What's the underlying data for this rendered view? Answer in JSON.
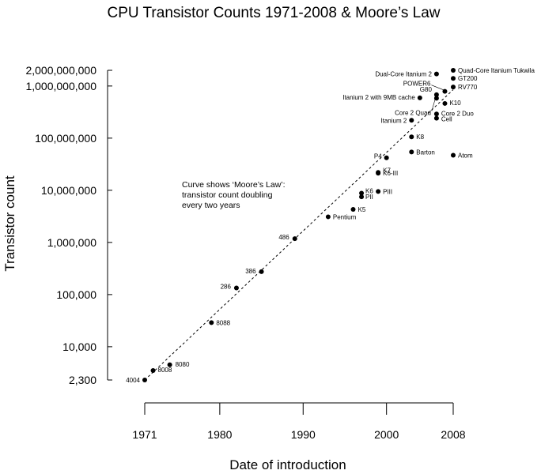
{
  "chart_data": {
    "type": "scatter",
    "title": "CPU Transistor Counts 1971-2008 & Moore’s Law",
    "xlabel": "Date of introduction",
    "ylabel": "Transistor count",
    "xscale": "linear",
    "yscale": "log",
    "xlim": [
      1971,
      2008
    ],
    "ylim": [
      2300,
      2000000000
    ],
    "x_ticks": [
      1971,
      1980,
      1990,
      2000,
      2008
    ],
    "x_tick_labels": [
      "1971",
      "1980",
      "1990",
      "2000",
      "2008"
    ],
    "y_ticks": [
      2300,
      10000,
      100000,
      1000000,
      10000000,
      100000000,
      1000000000,
      2000000000
    ],
    "y_tick_labels": [
      "2,300",
      "10,000",
      "100,000",
      "1,000,000",
      "10,000,000",
      "100,000,000",
      "1,000,000,000",
      "2,000,000,000"
    ],
    "grid": false,
    "annotation": [
      "Curve shows ‘Moore’s Law’:",
      "transistor count doubling",
      "every two years"
    ],
    "trend_line": {
      "label": "Moore's Law",
      "style": "dashed",
      "doubling_period_years": 2,
      "start": [
        1971,
        2300
      ],
      "end": [
        2008,
        850000000
      ]
    },
    "points": [
      {
        "name": "4004",
        "x": 1971.0,
        "y": 2300
      },
      {
        "name": "8008",
        "x": 1972.0,
        "y": 3500
      },
      {
        "name": "8080",
        "x": 1974.0,
        "y": 4500
      },
      {
        "name": "8088",
        "x": 1979.0,
        "y": 29000
      },
      {
        "name": "286",
        "x": 1982.0,
        "y": 134000
      },
      {
        "name": "386",
        "x": 1985.0,
        "y": 275000
      },
      {
        "name": "486",
        "x": 1989.0,
        "y": 1180000
      },
      {
        "name": "Pentium",
        "x": 1993.0,
        "y": 3100000
      },
      {
        "name": "K5",
        "x": 1996.0,
        "y": 4300000
      },
      {
        "name": "K6",
        "x": 1997.0,
        "y": 8800000
      },
      {
        "name": "PII",
        "x": 1997.0,
        "y": 7500000
      },
      {
        "name": "PIII",
        "x": 1999.0,
        "y": 9500000
      },
      {
        "name": "K6-III",
        "x": 1999.0,
        "y": 21300000
      },
      {
        "name": "K7",
        "x": 1999.0,
        "y": 22000000
      },
      {
        "name": "P4",
        "x": 2000.0,
        "y": 42000000
      },
      {
        "name": "Barton",
        "x": 2003.0,
        "y": 54300000
      },
      {
        "name": "K8",
        "x": 2003.0,
        "y": 105900000
      },
      {
        "name": "Itanium 2",
        "x": 2003.0,
        "y": 220000000
      },
      {
        "name": "Itanium 2 with 9MB cache",
        "x": 2004.0,
        "y": 592000000
      },
      {
        "name": "Cell",
        "x": 2006.0,
        "y": 241000000
      },
      {
        "name": "Core 2 Duo",
        "x": 2006.0,
        "y": 291000000
      },
      {
        "name": "Core 2 Quad",
        "x": 2006.0,
        "y": 582000000
      },
      {
        "name": "G80",
        "x": 2006.0,
        "y": 681000000
      },
      {
        "name": "Dual-Core Itanium 2",
        "x": 2006.0,
        "y": 1700000000
      },
      {
        "name": "POWER6",
        "x": 2007.0,
        "y": 789000000
      },
      {
        "name": "K10",
        "x": 2007.0,
        "y": 463000000
      },
      {
        "name": "Atom",
        "x": 2008.0,
        "y": 47000000
      },
      {
        "name": "RV770",
        "x": 2008.0,
        "y": 956000000
      },
      {
        "name": "GT200",
        "x": 2008.0,
        "y": 1400000000
      },
      {
        "name": "Quad-Core Itanium Tukwila",
        "x": 2008.0,
        "y": 2000000000
      }
    ]
  }
}
